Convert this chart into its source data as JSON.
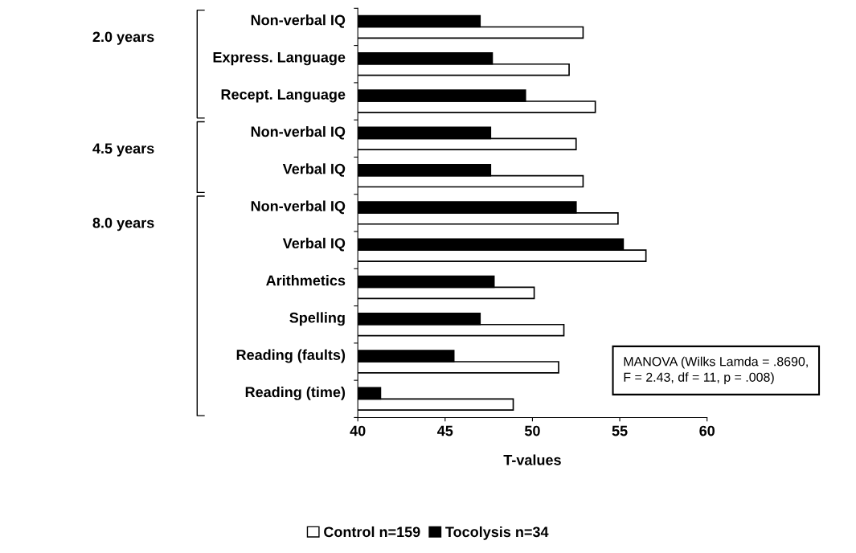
{
  "chart_data": {
    "type": "bar",
    "orientation": "horizontal",
    "categories": [
      "Non-verbal IQ",
      "Express. Language",
      "Recept. Language",
      "Non-verbal IQ",
      "Verbal IQ",
      "Non-verbal IQ",
      "Verbal IQ",
      "Arithmetics",
      "Spelling",
      "Reading (faults)",
      "Reading (time)"
    ],
    "series": [
      {
        "name": "Control n=159",
        "color": "#ffffff",
        "values": [
          52.9,
          52.1,
          53.6,
          52.5,
          52.9,
          54.9,
          56.5,
          50.1,
          51.8,
          51.5,
          48.9
        ]
      },
      {
        "name": "Tocolysis n=34",
        "color": "#000000",
        "values": [
          47.0,
          47.7,
          49.6,
          47.6,
          47.6,
          52.5,
          55.2,
          47.8,
          47.0,
          45.5,
          41.3
        ]
      }
    ],
    "xlabel": "T-values",
    "xlim": [
      40,
      60
    ],
    "xticks": [
      40,
      45,
      50,
      55,
      60
    ],
    "grid": false,
    "legend": "bottom",
    "annotations": [
      "2.0 years",
      "4.5 years",
      "8.0 years",
      "MANOVA (Wilks Lamda = .8690,\nF = 2.43, df = 11, p = .008)"
    ]
  }
}
